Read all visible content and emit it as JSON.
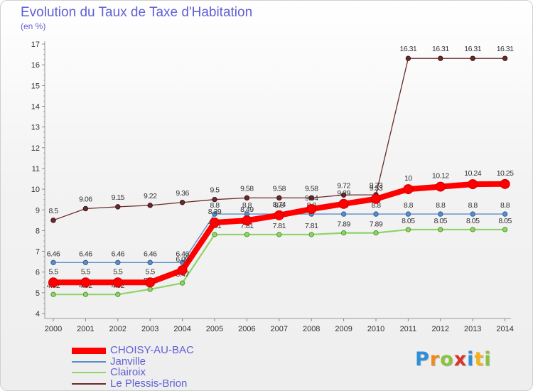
{
  "header": {
    "title": "Evolution du Taux de Taxe d'Habitation",
    "subtitle": "(en %)"
  },
  "chart_data": {
    "type": "line",
    "categories": [
      "2000",
      "2001",
      "2002",
      "2003",
      "2004",
      "2005",
      "2006",
      "2007",
      "2008",
      "2009",
      "2010",
      "2011",
      "2012",
      "2013",
      "2014"
    ],
    "y_ticks": [
      "4",
      "5",
      "6",
      "7",
      "8",
      "9",
      "10",
      "11",
      "12",
      "13",
      "14",
      "15",
      "16",
      "17"
    ],
    "ylim": [
      4,
      17
    ],
    "grid": false,
    "legend_position": "bottom-left",
    "series": [
      {
        "name": "Le Plessis-Brion",
        "color": "#6b2a2a",
        "values": [
          8.5,
          9.06,
          9.15,
          9.22,
          9.36,
          9.5,
          9.58,
          9.58,
          9.58,
          9.72,
          9.73,
          16.31,
          16.31,
          16.31,
          16.31
        ],
        "labels": [
          "8.5",
          "9.06",
          "9.15",
          "9.22",
          "9.36",
          "9.5",
          "9.58",
          "9.58",
          "9.58",
          "9.72",
          "9.73",
          "16.31",
          "16.31",
          "16.31",
          "16.31"
        ]
      },
      {
        "name": "Janville",
        "color": "#5b8ec9",
        "values": [
          6.46,
          6.46,
          6.46,
          6.46,
          6.46,
          8.8,
          8.8,
          8.8,
          8.8,
          8.8,
          8.8,
          8.8,
          8.8,
          8.8,
          8.8
        ],
        "labels": [
          "6.46",
          "6.46",
          "6.46",
          "6.46",
          "6.46",
          "8.8",
          "8.8",
          "8.8",
          "8.8",
          "8.8",
          "8.8",
          "8.8",
          "8.8",
          "8.8",
          "8.8"
        ]
      },
      {
        "name": "Clairoix",
        "color": "#8fd36a",
        "values": [
          4.92,
          4.92,
          4.92,
          5.17,
          5.47,
          7.81,
          7.81,
          7.81,
          7.81,
          7.89,
          7.89,
          8.05,
          8.05,
          8.05,
          8.05
        ],
        "labels": [
          "4.92",
          "4.92",
          "4.92",
          "5.17",
          "5.47",
          "7.81",
          "7.81",
          "7.81",
          "7.81",
          "7.89",
          "7.89",
          "8.05",
          "8.05",
          "8.05",
          "8.05"
        ]
      },
      {
        "name": "CHOISY-AU-BAC",
        "color": "#ff0000",
        "values": [
          5.5,
          5.5,
          5.5,
          5.5,
          6.09,
          8.39,
          8.49,
          8.74,
          9.04,
          9.29,
          9.53,
          10,
          10.12,
          10.24,
          10.25
        ],
        "labels": [
          "5.5",
          "5.5",
          "5.5",
          "5.5",
          "6.09",
          "8.39",
          "8.49",
          "8.74",
          "9.04",
          "9.29",
          "9.53",
          "10",
          "10.12",
          "10.24",
          "10.25"
        ]
      }
    ]
  },
  "legend": {
    "items": [
      {
        "label": "CHOISY-AU-BAC",
        "color": "#ff0000",
        "weight": 9
      },
      {
        "label": "Janville",
        "color": "#5b8ec9",
        "weight": 2
      },
      {
        "label": "Clairoix",
        "color": "#8fd36a",
        "weight": 2
      },
      {
        "label": "Le Plessis-Brion",
        "color": "#6b2a2a",
        "weight": 2
      }
    ]
  },
  "logo": {
    "letters": [
      "P",
      "r",
      "o",
      "x",
      "i",
      "t",
      "i"
    ],
    "colors": [
      "#2e8fd8",
      "#f08a1c",
      "#8ac43f",
      "#d9342b",
      "#2e8fd8",
      "#f2b21c",
      "#8ac43f"
    ]
  }
}
